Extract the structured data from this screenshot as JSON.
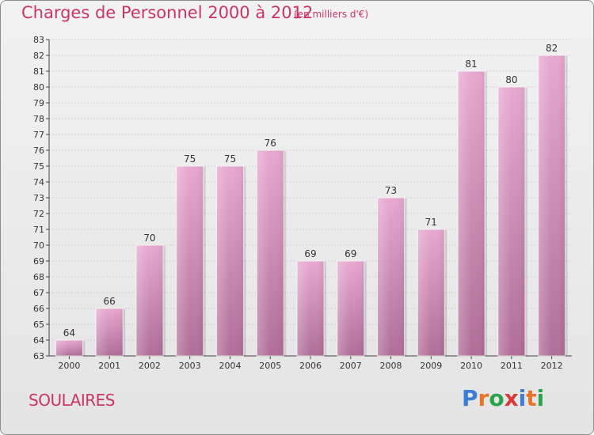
{
  "title": "Charges de Personnel 2000 à 2012",
  "subtitle": "(en milliers d'€)",
  "place": "SOULAIRES",
  "logo": {
    "letters": [
      "P",
      "r",
      "o",
      "x",
      "i",
      "t",
      "i"
    ],
    "colors": [
      "#3b7ed6",
      "#e8742a",
      "#2aa44c",
      "#d83a3a",
      "#3b7ed6",
      "#e8742a",
      "#2aa44c"
    ]
  },
  "colors": {
    "bar_light": "#e8a8d0",
    "bar_dark": "#b06e98",
    "title": "#cc3366"
  },
  "chart_data": {
    "type": "bar",
    "categories": [
      "2000",
      "2001",
      "2002",
      "2003",
      "2004",
      "2005",
      "2006",
      "2007",
      "2008",
      "2009",
      "2010",
      "2011",
      "2012"
    ],
    "values": [
      64,
      66,
      70,
      75,
      75,
      76,
      69,
      69,
      73,
      71,
      81,
      80,
      82
    ],
    "data_labels": [
      "64",
      "66",
      "70",
      "75",
      "75",
      "76",
      "69",
      "69",
      "73",
      "71",
      "81",
      "80",
      "82"
    ],
    "ylim": [
      63,
      83
    ],
    "yticks": [
      "63",
      "64",
      "65",
      "66",
      "67",
      "68",
      "69",
      "70",
      "71",
      "72",
      "73",
      "74",
      "75",
      "76",
      "77",
      "78",
      "79",
      "80",
      "81",
      "82",
      "83"
    ],
    "grid": true,
    "xlabel": "",
    "ylabel": ""
  }
}
